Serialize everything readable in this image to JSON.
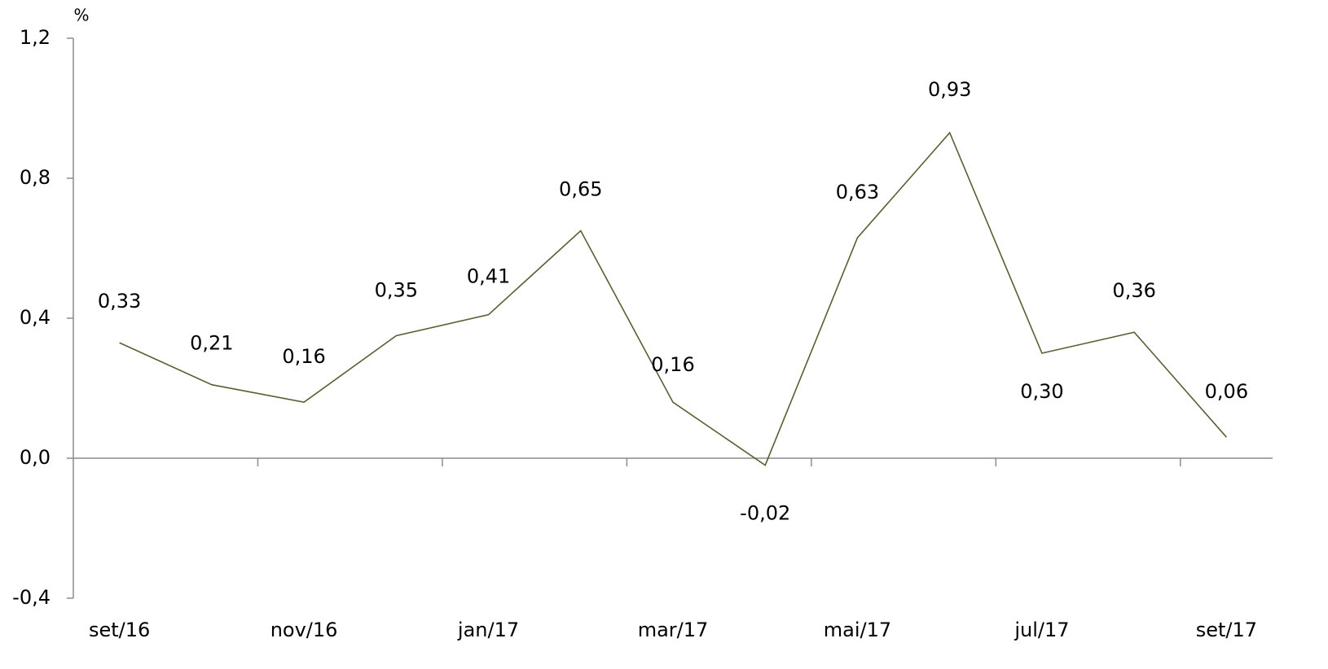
{
  "chart_data": {
    "type": "line",
    "y_unit": "%",
    "categories": [
      "set/16",
      null,
      "nov/16",
      null,
      "jan/17",
      null,
      "mar/17",
      null,
      "mai/17",
      null,
      "jul/17",
      null,
      "set/17"
    ],
    "series": [
      {
        "color": "#5a5e32",
        "values": [
          0.33,
          0.21,
          0.16,
          0.35,
          0.41,
          0.65,
          0.16,
          -0.02,
          0.63,
          0.93,
          0.3,
          0.36,
          0.06
        ],
        "value_labels": [
          "0,33",
          "0,21",
          "0,16",
          "0,35",
          "0,41",
          "0,65",
          "0,16",
          "-0,02",
          "0,63",
          "0,93",
          "0,30",
          "0,36",
          "0,06"
        ]
      }
    ],
    "ylim": [
      -0.4,
      1.2
    ],
    "yticks": [
      {
        "value": -0.4,
        "label": "-0,4"
      },
      {
        "value": 0,
        "label": "0,0"
      },
      {
        "value": 0.4,
        "label": "0,4"
      },
      {
        "value": 0.8,
        "label": "0,8"
      },
      {
        "value": 1.2,
        "label": "1,2"
      }
    ],
    "grid": false
  }
}
